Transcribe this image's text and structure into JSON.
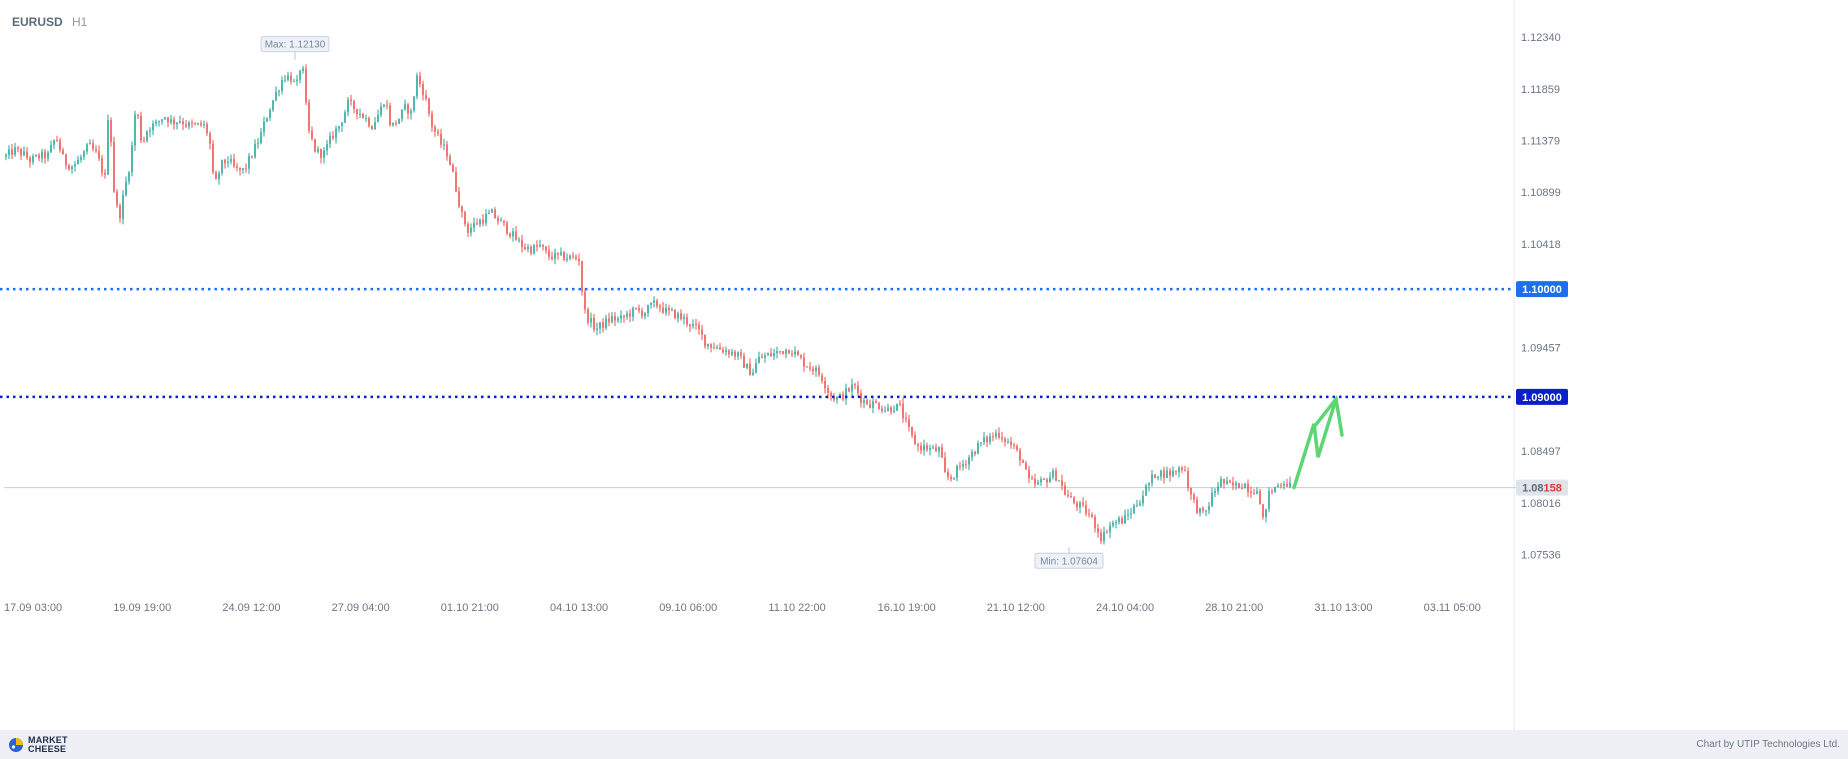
{
  "header": {
    "symbol": "EURUSD",
    "timeframe": "H1"
  },
  "footer": {
    "logo_line1": "MARKET",
    "logo_line2": "CHEESE",
    "credit": "Chart by UTIP Technologies Ltd."
  },
  "colors": {
    "up": "#26a69a",
    "down": "#ef5350",
    "level1": "#1e6ff0",
    "level2": "#0b1fc8",
    "arrow": "#5cd673",
    "axis_text": "#6a7685",
    "current_line": "#c9cdd4"
  },
  "chart_data": {
    "type": "candlestick",
    "symbol": "EURUSD",
    "timeframe": "H1",
    "ylim": [
      1.0718,
      1.1259
    ],
    "y_ticks": [
      "1.12340",
      "1.11859",
      "1.11379",
      "1.10899",
      "1.10418",
      "1.09457",
      "1.08497",
      "1.08016",
      "1.07536"
    ],
    "x_ticks": [
      "17.09 03:00",
      "19.09 19:00",
      "24.09 12:00",
      "27.09 04:00",
      "01.10 21:00",
      "04.10 13:00",
      "09.10 06:00",
      "11.10 22:00",
      "16.10 19:00",
      "21.10 12:00",
      "24.10 04:00",
      "28.10 21:00",
      "31.10 13:00",
      "03.11 05:00"
    ],
    "max": {
      "label": "Max: 1.12130",
      "value": 1.1213
    },
    "min": {
      "label": "Min: 1.07604",
      "value": 1.07604
    },
    "levels": [
      {
        "label": "1.10000",
        "value": 1.1,
        "style": "dotted"
      },
      {
        "label": "1.09000",
        "value": 1.09,
        "style": "dotted"
      }
    ],
    "current_price": {
      "value": 1.08158,
      "label_main": "1.08",
      "label_accent": "158"
    },
    "forecast_arrow": [
      1.08158,
      1.0875,
      1.0844,
      1.0898
    ],
    "price_path": [
      [
        0,
        1.1123
      ],
      [
        8,
        1.1129
      ],
      [
        16,
        1.1126
      ],
      [
        25,
        1.1119
      ],
      [
        33,
        1.1123
      ],
      [
        42,
        1.1124
      ],
      [
        50,
        1.1142
      ],
      [
        58,
        1.1118
      ],
      [
        67,
        1.1114
      ],
      [
        75,
        1.1122
      ],
      [
        83,
        1.1133
      ],
      [
        91,
        1.1124
      ],
      [
        99,
        1.1103
      ],
      [
        103,
        1.118
      ],
      [
        107,
        1.1098
      ],
      [
        111,
        1.1075
      ],
      [
        114,
        1.107
      ],
      [
        120,
        1.1099
      ],
      [
        125,
        1.1122
      ],
      [
        130,
        1.1172
      ],
      [
        136,
        1.1134
      ],
      [
        142,
        1.115
      ],
      [
        150,
        1.1153
      ],
      [
        158,
        1.1161
      ],
      [
        166,
        1.1155
      ],
      [
        174,
        1.1157
      ],
      [
        182,
        1.1152
      ],
      [
        190,
        1.1151
      ],
      [
        197,
        1.1153
      ],
      [
        201,
        1.1146
      ],
      [
        205,
        1.113
      ],
      [
        208,
        1.1092
      ],
      [
        215,
        1.1115
      ],
      [
        222,
        1.112
      ],
      [
        230,
        1.111
      ],
      [
        238,
        1.111
      ],
      [
        246,
        1.1125
      ],
      [
        254,
        1.1141
      ],
      [
        262,
        1.1164
      ],
      [
        270,
        1.1182
      ],
      [
        278,
        1.1198
      ],
      [
        286,
        1.1196
      ],
      [
        290,
        1.1185
      ],
      [
        294,
        1.1205
      ],
      [
        297,
        1.1201
      ],
      [
        302,
        1.1148
      ],
      [
        310,
        1.1127
      ],
      [
        318,
        1.1126
      ],
      [
        326,
        1.1142
      ],
      [
        334,
        1.1153
      ],
      [
        342,
        1.1172
      ],
      [
        350,
        1.1167
      ],
      [
        358,
        1.116
      ],
      [
        366,
        1.1152
      ],
      [
        374,
        1.1165
      ],
      [
        379,
        1.1178
      ],
      [
        385,
        1.115
      ],
      [
        392,
        1.1157
      ],
      [
        400,
        1.1169
      ],
      [
        406,
        1.1162
      ],
      [
        410,
        1.1199
      ],
      [
        418,
        1.1182
      ],
      [
        426,
        1.1152
      ],
      [
        434,
        1.1136
      ],
      [
        442,
        1.1125
      ],
      [
        450,
        1.1094
      ],
      [
        456,
        1.1068
      ],
      [
        462,
        1.1055
      ],
      [
        470,
        1.1061
      ],
      [
        478,
        1.1066
      ],
      [
        486,
        1.107
      ],
      [
        494,
        1.1062
      ],
      [
        502,
        1.1055
      ],
      [
        510,
        1.1046
      ],
      [
        518,
        1.1039
      ],
      [
        526,
        1.1037
      ],
      [
        534,
        1.104
      ],
      [
        542,
        1.1031
      ],
      [
        550,
        1.103
      ],
      [
        558,
        1.103
      ],
      [
        566,
        1.1029
      ],
      [
        573,
        1.1028
      ],
      [
        578,
        1.098
      ],
      [
        584,
        1.097
      ],
      [
        590,
        1.0963
      ],
      [
        598,
        1.0968
      ],
      [
        606,
        1.0973
      ],
      [
        614,
        1.0971
      ],
      [
        622,
        1.0977
      ],
      [
        630,
        1.098
      ],
      [
        638,
        1.0978
      ],
      [
        646,
        1.0985
      ],
      [
        652,
        1.0986
      ],
      [
        660,
        1.0979
      ],
      [
        668,
        1.0977
      ],
      [
        676,
        1.0973
      ],
      [
        684,
        1.0968
      ],
      [
        692,
        1.0962
      ],
      [
        700,
        1.095
      ],
      [
        708,
        1.0947
      ],
      [
        716,
        1.0944
      ],
      [
        724,
        1.0942
      ],
      [
        732,
        1.0938
      ],
      [
        740,
        1.0928
      ],
      [
        746,
        1.0922
      ],
      [
        752,
        1.0935
      ],
      [
        760,
        1.0938
      ],
      [
        768,
        1.094
      ],
      [
        776,
        1.0943
      ],
      [
        784,
        1.0945
      ],
      [
        792,
        1.0937
      ],
      [
        800,
        1.093
      ],
      [
        808,
        1.0926
      ],
      [
        816,
        1.0918
      ],
      [
        824,
        1.0902
      ],
      [
        832,
        1.0898
      ],
      [
        840,
        1.0904
      ],
      [
        848,
        1.0911
      ],
      [
        856,
        1.0897
      ],
      [
        864,
        1.0894
      ],
      [
        872,
        1.0893
      ],
      [
        880,
        1.0888
      ],
      [
        888,
        1.0891
      ],
      [
        894,
        1.089
      ],
      [
        900,
        1.0875
      ],
      [
        906,
        1.0862
      ],
      [
        912,
        1.0854
      ],
      [
        920,
        1.0853
      ],
      [
        928,
        1.085
      ],
      [
        934,
        1.0851
      ],
      [
        938,
        1.0828
      ],
      [
        944,
        1.0824
      ],
      [
        952,
        1.0833
      ],
      [
        960,
        1.0841
      ],
      [
        968,
        1.085
      ],
      [
        976,
        1.0858
      ],
      [
        984,
        1.0862
      ],
      [
        992,
        1.0867
      ],
      [
        1000,
        1.086
      ],
      [
        1008,
        1.0852
      ],
      [
        1016,
        1.0842
      ],
      [
        1022,
        1.0822
      ],
      [
        1030,
        1.0818
      ],
      [
        1038,
        1.0822
      ],
      [
        1046,
        1.0828
      ],
      [
        1052,
        1.0826
      ],
      [
        1058,
        1.0812
      ],
      [
        1066,
        1.0803
      ],
      [
        1074,
        1.0798
      ],
      [
        1082,
        1.0792
      ],
      [
        1090,
        1.078
      ],
      [
        1096,
        1.0768
      ],
      [
        1102,
        1.078
      ],
      [
        1110,
        1.0784
      ],
      [
        1118,
        1.0786
      ],
      [
        1126,
        1.0795
      ],
      [
        1134,
        1.0805
      ],
      [
        1142,
        1.0818
      ],
      [
        1150,
        1.083
      ],
      [
        1158,
        1.0829
      ],
      [
        1166,
        1.0829
      ],
      [
        1172,
        1.0833
      ],
      [
        1178,
        1.0836
      ],
      [
        1184,
        1.081
      ],
      [
        1190,
        1.0798
      ],
      [
        1198,
        1.0789
      ],
      [
        1206,
        1.0808
      ],
      [
        1214,
        1.0822
      ],
      [
        1222,
        1.0818
      ],
      [
        1230,
        1.0817
      ],
      [
        1238,
        1.082
      ],
      [
        1246,
        1.0812
      ],
      [
        1252,
        1.0818
      ],
      [
        1256,
        1.078
      ],
      [
        1262,
        1.0808
      ],
      [
        1270,
        1.0817
      ],
      [
        1278,
        1.0822
      ],
      [
        1286,
        1.0816
      ]
    ]
  }
}
